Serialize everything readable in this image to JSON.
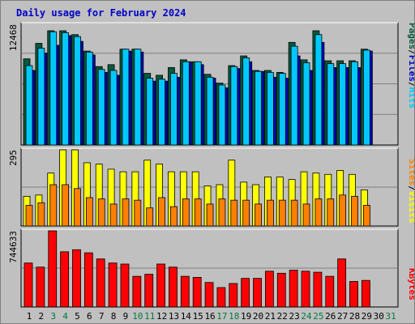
{
  "title": "Daily usage for February 2024",
  "colors": {
    "pages": "#005a3c",
    "files": "#0000c0",
    "hits": "#00c8ff",
    "visits": "#ffff00",
    "sites": "#ff8000",
    "kbytes": "#ff0000",
    "weekend_label": "#007a3c",
    "weekday_label": "#000000"
  },
  "chart_data": [
    {
      "type": "bar",
      "name": "hits-files-pages",
      "max_label": "12468",
      "ylim": [
        0,
        12468
      ],
      "legend": [
        "Pages",
        "/",
        "Files",
        "/",
        "Hits"
      ],
      "categories": [
        "1",
        "2",
        "3",
        "4",
        "5",
        "6",
        "7",
        "8",
        "9",
        "10",
        "11",
        "12",
        "13",
        "14",
        "15",
        "16",
        "17",
        "18",
        "19",
        "20",
        "21",
        "22",
        "23",
        "24",
        "25",
        "26",
        "27",
        "28",
        "29",
        "30",
        "31"
      ],
      "series": [
        {
          "name": "Pages",
          "values": [
            8900,
            10500,
            11800,
            11800,
            11400,
            9700,
            8100,
            8300,
            9900,
            9900,
            7400,
            7200,
            8000,
            8800,
            8600,
            7300,
            6400,
            8200,
            9200,
            7700,
            7700,
            7500,
            10600,
            8800,
            11800,
            8700,
            8700,
            8700,
            9900,
            null,
            null
          ]
        },
        {
          "name": "Files",
          "values": [
            7700,
            9500,
            10300,
            11300,
            10700,
            9300,
            7500,
            7200,
            9700,
            9600,
            6600,
            6600,
            7000,
            8600,
            8300,
            6900,
            5900,
            7900,
            8600,
            7600,
            7000,
            6900,
            9200,
            7700,
            10600,
            8000,
            8000,
            8000,
            9700,
            null,
            null
          ]
        },
        {
          "name": "Hits",
          "values": [
            8200,
            10000,
            11700,
            11600,
            11200,
            9600,
            7800,
            7700,
            9900,
            9900,
            6900,
            6800,
            7400,
            8600,
            8600,
            7000,
            6200,
            8100,
            9000,
            7600,
            7500,
            7400,
            10200,
            8500,
            11400,
            8400,
            8400,
            8600,
            9800,
            null,
            null
          ]
        }
      ]
    },
    {
      "type": "bar",
      "name": "visits-sites",
      "max_label": "295",
      "ylim": [
        0,
        295
      ],
      "legend": [
        "Sites",
        "/",
        "Visits"
      ],
      "categories": [
        "1",
        "2",
        "3",
        "4",
        "5",
        "6",
        "7",
        "8",
        "9",
        "10",
        "11",
        "12",
        "13",
        "14",
        "15",
        "16",
        "17",
        "18",
        "19",
        "20",
        "21",
        "22",
        "23",
        "24",
        "25",
        "26",
        "27",
        "28",
        "29",
        "30",
        "31"
      ],
      "series": [
        {
          "name": "Visits",
          "values": [
            115,
            120,
            205,
            295,
            295,
            245,
            240,
            220,
            210,
            210,
            255,
            240,
            210,
            210,
            210,
            155,
            160,
            255,
            170,
            160,
            190,
            190,
            180,
            210,
            205,
            200,
            215,
            200,
            140,
            null,
            null
          ]
        },
        {
          "name": "Sites",
          "values": [
            80,
            90,
            160,
            160,
            145,
            110,
            105,
            85,
            105,
            100,
            70,
            110,
            75,
            105,
            105,
            85,
            105,
            100,
            100,
            85,
            100,
            100,
            100,
            85,
            105,
            105,
            120,
            115,
            80,
            null,
            null
          ]
        }
      ]
    },
    {
      "type": "bar",
      "name": "kbytes",
      "max_label": "744633",
      "ylim": [
        0,
        744633
      ],
      "legend": [
        "KBytes"
      ],
      "categories": [
        "1",
        "2",
        "3",
        "4",
        "5",
        "6",
        "7",
        "8",
        "9",
        "10",
        "11",
        "12",
        "13",
        "14",
        "15",
        "16",
        "17",
        "18",
        "19",
        "20",
        "21",
        "22",
        "23",
        "24",
        "25",
        "26",
        "27",
        "28",
        "29",
        "30",
        "31"
      ],
      "series": [
        {
          "name": "KBytes",
          "values": [
            430000,
            390000,
            744633,
            540000,
            560000,
            530000,
            470000,
            430000,
            420000,
            300000,
            320000,
            420000,
            390000,
            300000,
            290000,
            240000,
            190000,
            230000,
            280000,
            280000,
            350000,
            330000,
            360000,
            350000,
            340000,
            300000,
            470000,
            250000,
            260000,
            null,
            null
          ]
        }
      ]
    }
  ],
  "weekend_days": [
    "3",
    "4",
    "10",
    "11",
    "17",
    "18",
    "24",
    "25",
    "31"
  ]
}
